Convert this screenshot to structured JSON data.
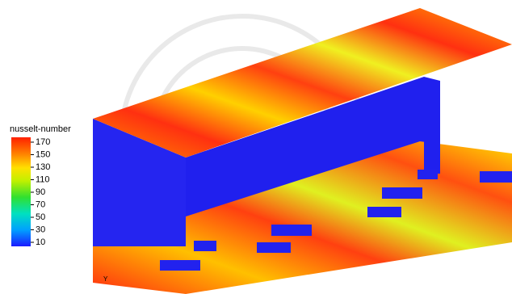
{
  "colorbar": {
    "title": "nusselt-number",
    "ticks": [
      170,
      150,
      130,
      110,
      90,
      70,
      50,
      30,
      10
    ],
    "range": [
      10,
      170
    ]
  },
  "axis_label": "Y"
}
